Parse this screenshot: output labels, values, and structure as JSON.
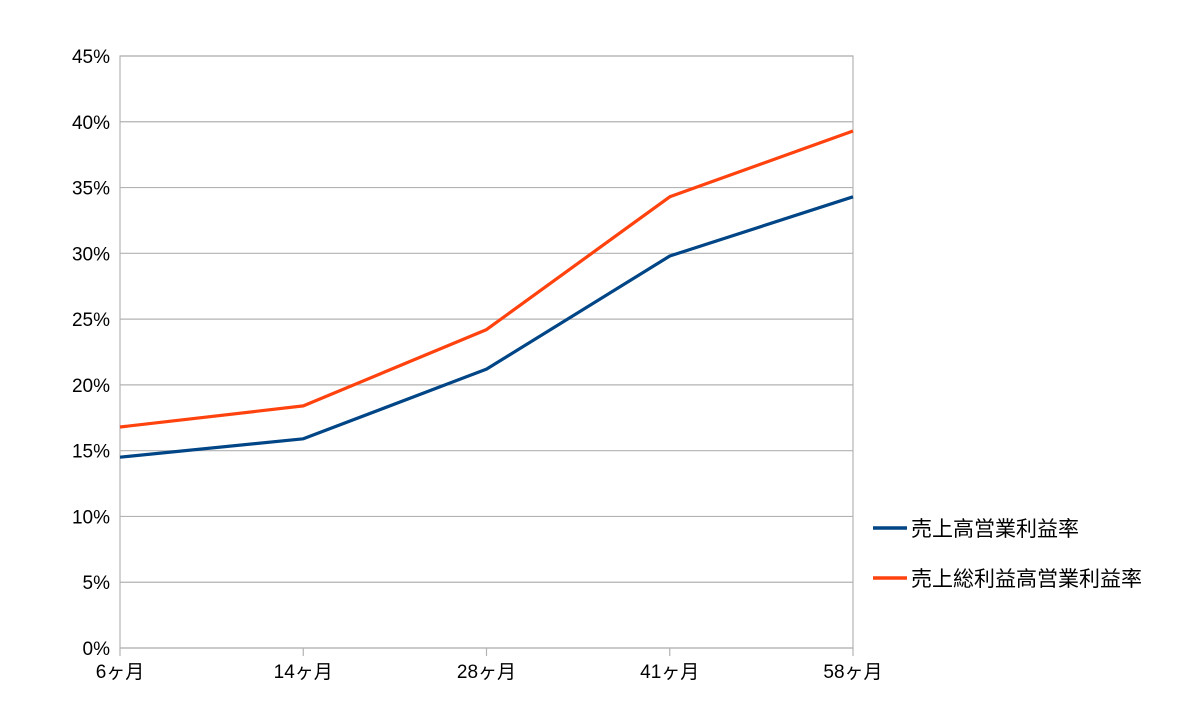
{
  "chart_data": {
    "type": "line",
    "title": "",
    "xlabel": "",
    "ylabel": "",
    "categories": [
      "6ヶ月",
      "14ヶ月",
      "28ヶ月",
      "41ヶ月",
      "58ヶ月"
    ],
    "y_ticks": [
      "0%",
      "5%",
      "10%",
      "15%",
      "20%",
      "25%",
      "30%",
      "35%",
      "40%",
      "45%"
    ],
    "ylim": [
      0,
      45
    ],
    "y_unit": "%",
    "grid": true,
    "legend_position": "right",
    "series": [
      {
        "name": "売上高営業利益率",
        "color": "#004586",
        "values": [
          14.5,
          15.9,
          21.2,
          29.8,
          34.3
        ]
      },
      {
        "name": "売上総利益高営業利益率",
        "color": "#ff420e",
        "values": [
          16.8,
          18.4,
          24.2,
          34.3,
          39.3
        ]
      }
    ]
  }
}
